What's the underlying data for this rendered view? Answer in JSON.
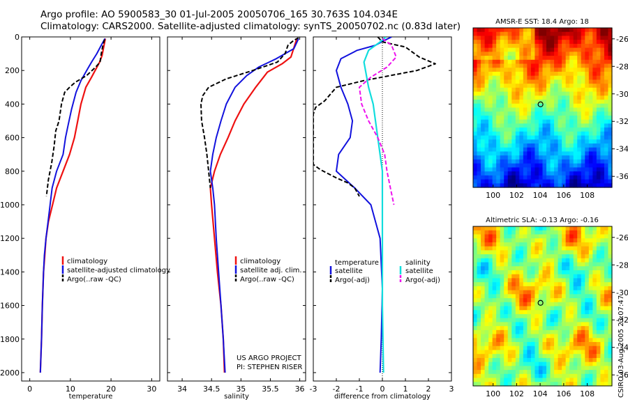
{
  "header": {
    "line1": "Argo profile: AO 5900583_30 01-Jul-2005 20050706_165 30.763S 104.034E",
    "line2": "Climatology: CARS2000. Satellite-adjusted climatology: synTS_20050702.nc (0.83d later)"
  },
  "colors": {
    "clim": "#ee1111",
    "sat": "#1111dd",
    "argo": "#000000",
    "sal_sat": "#11dddd",
    "sal_argo": "#ee11ee"
  },
  "chart_data": [
    {
      "type": "line",
      "id": "temperature",
      "xlabel": "temperature",
      "ylabel": "",
      "xlim": [
        -2,
        32
      ],
      "ylim": [
        0,
        2050
      ],
      "xticks": [
        0,
        10,
        20,
        30
      ],
      "yticks": [
        0,
        200,
        400,
        600,
        800,
        1000,
        1200,
        1400,
        1600,
        1800,
        2000
      ],
      "legend": [
        "climatology",
        "satellite-adjusted climatology",
        "Argo(..raw -QC)"
      ],
      "series": [
        {
          "name": "climatology",
          "style": "clim",
          "points": [
            [
              18.6,
              10
            ],
            [
              18.2,
              60
            ],
            [
              17.8,
              110
            ],
            [
              17.2,
              150
            ],
            [
              16.3,
              190
            ],
            [
              15.2,
              240
            ],
            [
              13.8,
              300
            ],
            [
              12.6,
              400
            ],
            [
              11.8,
              500
            ],
            [
              11.0,
              600
            ],
            [
              9.8,
              700
            ],
            [
              8.2,
              800
            ],
            [
              6.6,
              900
            ],
            [
              5.6,
              1000
            ],
            [
              4.6,
              1100
            ],
            [
              4.0,
              1200
            ],
            [
              3.7,
              1300
            ],
            [
              3.4,
              1400
            ],
            [
              3.1,
              1600
            ],
            [
              2.9,
              1800
            ],
            [
              2.6,
              2000
            ]
          ]
        },
        {
          "name": "satellite-adjusted climatology",
          "style": "sat",
          "points": [
            [
              18.5,
              10
            ],
            [
              17.6,
              50
            ],
            [
              16.5,
              100
            ],
            [
              15.2,
              150
            ],
            [
              14.0,
              200
            ],
            [
              12.6,
              260
            ],
            [
              11.4,
              330
            ],
            [
              10.3,
              430
            ],
            [
              9.4,
              530
            ],
            [
              8.8,
              600
            ],
            [
              8.2,
              700
            ],
            [
              6.6,
              800
            ],
            [
              5.5,
              900
            ],
            [
              5.0,
              1000
            ],
            [
              4.5,
              1100
            ],
            [
              4.0,
              1200
            ],
            [
              3.6,
              1300
            ],
            [
              3.4,
              1400
            ],
            [
              3.1,
              1600
            ],
            [
              2.9,
              1800
            ],
            [
              2.6,
              2000
            ]
          ]
        },
        {
          "name": "Argo(..raw -QC)",
          "style": "argo",
          "points": [
            [
              18.4,
              15
            ],
            [
              18.0,
              50
            ],
            [
              17.6,
              100
            ],
            [
              17.3,
              150
            ],
            [
              16.2,
              180
            ],
            [
              14.0,
              230
            ],
            [
              11.2,
              270
            ],
            [
              9.8,
              300
            ],
            [
              8.6,
              330
            ],
            [
              7.8,
              400
            ],
            [
              7.2,
              500
            ],
            [
              6.4,
              560
            ],
            [
              6.0,
              650
            ],
            [
              5.4,
              750
            ],
            [
              4.6,
              850
            ],
            [
              4.1,
              950
            ]
          ]
        }
      ]
    },
    {
      "type": "line",
      "id": "salinity",
      "xlabel": "salinity",
      "ylabel": "",
      "xlim": [
        33.75,
        36.1
      ],
      "ylim": [
        0,
        2050
      ],
      "xticks": [
        34,
        34.5,
        35,
        35.5,
        36
      ],
      "legend": [
        "climatology",
        "satellite adj. clim.",
        "Argo(..raw -QC)"
      ],
      "annotation": [
        "US ARGO PROJECT",
        "PI: STEPHEN RISER"
      ],
      "series": [
        {
          "name": "climatology",
          "style": "clim",
          "points": [
            [
              35.95,
              10
            ],
            [
              35.85,
              120
            ],
            [
              35.7,
              160
            ],
            [
              35.45,
              210
            ],
            [
              35.25,
              300
            ],
            [
              35.05,
              400
            ],
            [
              34.9,
              500
            ],
            [
              34.78,
              600
            ],
            [
              34.65,
              700
            ],
            [
              34.55,
              800
            ],
            [
              34.48,
              900
            ],
            [
              34.5,
              1000
            ],
            [
              34.55,
              1200
            ],
            [
              34.6,
              1400
            ],
            [
              34.66,
              1600
            ],
            [
              34.7,
              1800
            ],
            [
              34.72,
              2000
            ]
          ]
        },
        {
          "name": "satellite adj. clim.",
          "style": "sat",
          "points": [
            [
              35.98,
              10
            ],
            [
              35.9,
              70
            ],
            [
              35.6,
              130
            ],
            [
              35.3,
              180
            ],
            [
              35.1,
              230
            ],
            [
              34.9,
              300
            ],
            [
              34.75,
              400
            ],
            [
              34.66,
              500
            ],
            [
              34.58,
              600
            ],
            [
              34.52,
              700
            ],
            [
              34.48,
              800
            ],
            [
              34.52,
              900
            ],
            [
              34.55,
              1000
            ],
            [
              34.58,
              1200
            ],
            [
              34.62,
              1400
            ],
            [
              34.66,
              1600
            ],
            [
              34.7,
              1800
            ],
            [
              34.73,
              2000
            ]
          ]
        },
        {
          "name": "Argo(..raw -QC)",
          "style": "argo",
          "points": [
            [
              35.98,
              5
            ],
            [
              35.9,
              20
            ],
            [
              35.8,
              50
            ],
            [
              35.75,
              100
            ],
            [
              35.62,
              150
            ],
            [
              35.2,
              200
            ],
            [
              34.75,
              250
            ],
            [
              34.45,
              300
            ],
            [
              34.35,
              350
            ],
            [
              34.32,
              400
            ],
            [
              34.33,
              500
            ],
            [
              34.38,
              600
            ],
            [
              34.42,
              700
            ],
            [
              34.45,
              800
            ],
            [
              34.48,
              900
            ]
          ]
        }
      ]
    },
    {
      "type": "line",
      "id": "difference",
      "xlabel": "difference from climatology",
      "ylabel": "",
      "xlim": [
        -3,
        3
      ],
      "ylim": [
        0,
        2050
      ],
      "xticks": [
        -3,
        -2,
        -1,
        0,
        1,
        2,
        3
      ],
      "legend_temp": [
        "temperature",
        "satellite",
        "Argo(-adj)"
      ],
      "legend_sal": [
        "salinity",
        "satellite",
        "Argo(-adj)"
      ],
      "series": [
        {
          "name": "temperature satellite",
          "style": "sat",
          "points": [
            [
              0.4,
              0
            ],
            [
              0.1,
              20
            ],
            [
              -0.3,
              50
            ],
            [
              -1.1,
              80
            ],
            [
              -1.8,
              130
            ],
            [
              -2.0,
              200
            ],
            [
              -1.8,
              300
            ],
            [
              -1.5,
              400
            ],
            [
              -1.3,
              500
            ],
            [
              -1.4,
              600
            ],
            [
              -1.9,
              700
            ],
            [
              -2.0,
              800
            ],
            [
              -1.2,
              900
            ],
            [
              -0.5,
              1000
            ],
            [
              -0.3,
              1100
            ],
            [
              -0.1,
              1200
            ],
            [
              0.0,
              1500
            ],
            [
              -0.05,
              1800
            ],
            [
              -0.1,
              2000
            ]
          ]
        },
        {
          "name": "temperature Argo(-adj)",
          "style": "argo",
          "points": [
            [
              -0.2,
              0
            ],
            [
              0.0,
              30
            ],
            [
              1.0,
              60
            ],
            [
              1.6,
              120
            ],
            [
              2.3,
              160
            ],
            [
              1.5,
              200
            ],
            [
              -0.8,
              260
            ],
            [
              -2.0,
              300
            ],
            [
              -2.5,
              380
            ],
            [
              -2.9,
              420
            ],
            [
              -3.0,
              460
            ],
            [
              -3.0,
              760
            ],
            [
              -2.7,
              790
            ],
            [
              -2.0,
              840
            ],
            [
              -1.5,
              870
            ],
            [
              -1.2,
              900
            ],
            [
              -1.0,
              950
            ]
          ]
        },
        {
          "name": "salinity satellite",
          "style": "sal_sat",
          "points": [
            [
              0.15,
              0
            ],
            [
              -0.1,
              30
            ],
            [
              -0.6,
              80
            ],
            [
              -0.8,
              150
            ],
            [
              -0.6,
              300
            ],
            [
              -0.4,
              400
            ],
            [
              -0.3,
              500
            ],
            [
              -0.2,
              600
            ],
            [
              -0.1,
              700
            ],
            [
              0.0,
              800
            ],
            [
              0.0,
              1200
            ],
            [
              0.0,
              1600
            ],
            [
              0.05,
              2000
            ]
          ]
        },
        {
          "name": "salinity Argo(-adj)",
          "style": "sal_argo",
          "points": [
            [
              0.0,
              10
            ],
            [
              0.4,
              50
            ],
            [
              0.6,
              120
            ],
            [
              0.2,
              180
            ],
            [
              -0.5,
              240
            ],
            [
              -1.0,
              300
            ],
            [
              -0.9,
              400
            ],
            [
              -0.6,
              500
            ],
            [
              -0.2,
              600
            ],
            [
              0.1,
              700
            ],
            [
              0.2,
              800
            ],
            [
              0.35,
              900
            ],
            [
              0.5,
              1000
            ]
          ]
        }
      ]
    }
  ],
  "maps": [
    {
      "title": "AMSR-E SST: 18.4 Argo: 18",
      "xticks": [
        100,
        102,
        104,
        106,
        108
      ],
      "yticks": [
        -26,
        -28,
        -30,
        -32,
        -34,
        -36
      ],
      "xlim": [
        98.3,
        110.1
      ],
      "ylim": [
        -36.8,
        -25.2
      ],
      "marker": [
        104.03,
        -30.76
      ]
    },
    {
      "title": "Altimetric SLA: -0.13 Argo: -0.16",
      "xticks": [
        100,
        102,
        104,
        106,
        108
      ],
      "yticks": [
        -26,
        -28,
        -30,
        -32,
        -34,
        -36
      ],
      "xlim": [
        98.3,
        110.1
      ],
      "ylim": [
        -36.8,
        -25.2
      ],
      "marker": [
        104.03,
        -30.76
      ]
    }
  ],
  "side_label": "CSIRO 03-Aug-2005 23:07:47"
}
